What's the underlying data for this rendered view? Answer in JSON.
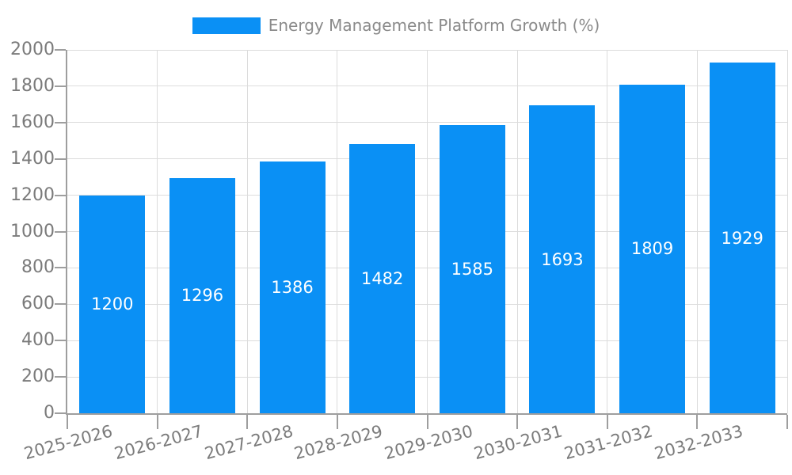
{
  "legend": {
    "label": "Energy Management Platform Growth (%)",
    "swatch_color": "#0a90f5"
  },
  "chart_data": {
    "type": "bar",
    "title": "Energy Management Platform Growth (%)",
    "categories": [
      "2025-2026",
      "2026-2027",
      "2027-2028",
      "2028-2029",
      "2029-2030",
      "2030-2031",
      "2031-2032",
      "2032-2033"
    ],
    "values": [
      1200,
      1296,
      1386,
      1482,
      1585,
      1693,
      1809,
      1929
    ],
    "value_labels": [
      "1200",
      "1296",
      "1386",
      "1482",
      "1585",
      "1693",
      "1809",
      "1929"
    ],
    "xlabel": "",
    "ylabel": "",
    "ylim": [
      0,
      2000
    ],
    "ytick_step": 200,
    "ytick_labels": [
      "0",
      "200",
      "400",
      "600",
      "800",
      "1000",
      "1200",
      "1400",
      "1600",
      "1800",
      "2000"
    ],
    "grid": true,
    "legend_position": "top-center",
    "x_label_rotation_deg": 15,
    "colors": {
      "bar": "#0a90f5",
      "gridline": "#dcdcdc",
      "axis": "#9e9e9e",
      "tick_label": "#7b7b7b",
      "legend_text": "#8a8a8a",
      "bar_value_text": "#ffffff",
      "background": "#ffffff"
    }
  }
}
